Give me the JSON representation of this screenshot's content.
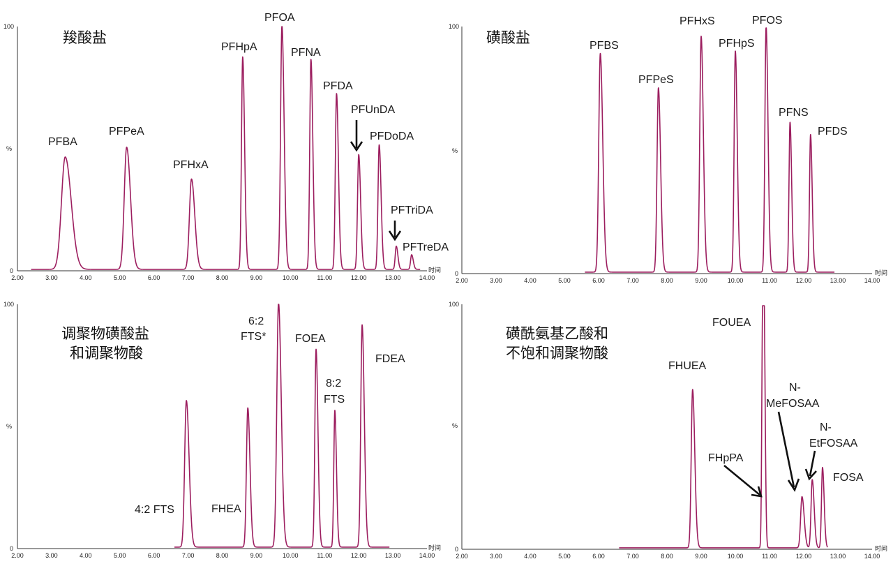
{
  "x_axis_label": "时间",
  "y_axis_label": "%",
  "chart_data": [
    {
      "type": "line",
      "title": "羧酸盐",
      "xlim": [
        2.0,
        14.0
      ],
      "ylim": [
        0,
        100
      ],
      "xticks": [
        "2.00",
        "3.00",
        "4.00",
        "5.00",
        "6.00",
        "7.00",
        "8.00",
        "9.00",
        "10.00",
        "11.00",
        "12.00",
        "13.00",
        "14.00"
      ],
      "yticks": [
        "0",
        "%",
        "100"
      ],
      "peaks": [
        {
          "name": "PFBA",
          "rt": 3.4,
          "height": 46,
          "width": 0.11
        },
        {
          "name": "PFPeA",
          "rt": 5.2,
          "height": 50,
          "width": 0.07
        },
        {
          "name": "PFHxA",
          "rt": 7.1,
          "height": 37,
          "width": 0.06
        },
        {
          "name": "PFHpA",
          "rt": 8.6,
          "height": 87,
          "width": 0.035
        },
        {
          "name": "PFOA",
          "rt": 9.75,
          "height": 100,
          "width": 0.04
        },
        {
          "name": "PFNA",
          "rt": 10.6,
          "height": 86,
          "width": 0.035
        },
        {
          "name": "PFDA",
          "rt": 11.35,
          "height": 72,
          "width": 0.035
        },
        {
          "name": "PFUnDA",
          "rt": 12.0,
          "height": 47,
          "width": 0.035
        },
        {
          "name": "PFDoDA",
          "rt": 12.6,
          "height": 51,
          "width": 0.035
        },
        {
          "name": "PFTriDA",
          "rt": 13.1,
          "height": 9.5,
          "width": 0.03
        },
        {
          "name": "PFTreDA",
          "rt": 13.55,
          "height": 6,
          "width": 0.03
        }
      ]
    },
    {
      "type": "line",
      "title": "磺酸盐",
      "xlim": [
        2.0,
        14.0
      ],
      "ylim": [
        0,
        100
      ],
      "xticks": [
        "2.00",
        "3.00",
        "4.00",
        "5.00",
        "6.00",
        "7.00",
        "8.00",
        "9.00",
        "10.00",
        "11.00",
        "12.00",
        "13.00",
        "14.00"
      ],
      "yticks": [
        "0",
        "%",
        "100"
      ],
      "peaks": [
        {
          "name": "PFBS",
          "rt": 6.05,
          "height": 89,
          "width": 0.045
        },
        {
          "name": "PFPeS",
          "rt": 7.75,
          "height": 75,
          "width": 0.04
        },
        {
          "name": "PFHxS",
          "rt": 9.0,
          "height": 96,
          "width": 0.04
        },
        {
          "name": "PFHpS",
          "rt": 10.0,
          "height": 90,
          "width": 0.035
        },
        {
          "name": "PFOS",
          "rt": 10.9,
          "height": 100,
          "width": 0.035
        },
        {
          "name": "PFNS",
          "rt": 11.6,
          "height": 61,
          "width": 0.03
        },
        {
          "name": "PFDS",
          "rt": 12.2,
          "height": 56,
          "width": 0.03
        }
      ]
    },
    {
      "type": "line",
      "title": "调聚物磺酸盐\n和调聚物酸",
      "xlim": [
        2.0,
        14.0
      ],
      "ylim": [
        0,
        100
      ],
      "xticks": [
        "2.00",
        "3.00",
        "4.00",
        "5.00",
        "6.00",
        "7.00",
        "8.00",
        "9.00",
        "10.00",
        "11.00",
        "12.00",
        "13.00",
        "14.00"
      ],
      "yticks": [
        "0",
        "%",
        "100"
      ],
      "peaks": [
        {
          "name": "4:2 FTS",
          "rt": 6.95,
          "height": 60,
          "width": 0.05
        },
        {
          "name": "FHEA",
          "rt": 8.75,
          "height": 57,
          "width": 0.04
        },
        {
          "name": "6:2 FTS*",
          "rt": 9.65,
          "height": 100,
          "width": 0.05
        },
        {
          "name": "FOEA",
          "rt": 10.75,
          "height": 81,
          "width": 0.035
        },
        {
          "name": "8:2 FTS",
          "rt": 11.3,
          "height": 56,
          "width": 0.03
        },
        {
          "name": "FDEA",
          "rt": 12.1,
          "height": 91,
          "width": 0.04
        }
      ]
    },
    {
      "type": "line",
      "title": "磺酰氨基乙酸和\n不饱和调聚物酸",
      "xlim": [
        2.0,
        14.0
      ],
      "ylim": [
        0,
        100
      ],
      "xticks": [
        "2.00",
        "3.00",
        "4.00",
        "5.00",
        "6.00",
        "7.00",
        "8.00",
        "9.00",
        "10.00",
        "11.00",
        "12.00",
        "13.00",
        "14.00"
      ],
      "yticks": [
        "0",
        "%",
        "100"
      ],
      "peaks": [
        {
          "name": "FHUEA",
          "rt": 8.75,
          "height": 65,
          "width": 0.04
        },
        {
          "name": "FOUEA",
          "rt": 10.8,
          "height": 100,
          "width": 0.025
        },
        {
          "name": "FHpPA",
          "rt": 10.85,
          "height": 53,
          "width": 0.02
        },
        {
          "name": "N-MeFOSAA",
          "rt": 11.95,
          "height": 21,
          "width": 0.04
        },
        {
          "name": "N-EtFOSAA",
          "rt": 12.25,
          "height": 28,
          "width": 0.035
        },
        {
          "name": "FOSA",
          "rt": 12.55,
          "height": 33,
          "width": 0.03
        }
      ]
    }
  ],
  "labels": {
    "p0": [
      "PFBA",
      "PFPeA",
      "PFHxA",
      "PFHpA",
      "PFOA",
      "PFNA",
      "PFDA",
      "PFUnDA",
      "PFDoDA",
      "PFTriDA",
      "PFTreDA"
    ],
    "p1": [
      "PFBS",
      "PFPeS",
      "PFHxS",
      "PFHpS",
      "PFOS",
      "PFNS",
      "PFDS"
    ],
    "p2": [
      "4:2 FTS",
      "FHEA",
      "6:2",
      "FTS*",
      "FOEA",
      "8:2",
      "FTS",
      "FDEA"
    ],
    "p3": [
      "FHUEA",
      "FOUEA",
      "FHpPA",
      "N-",
      "MeFOSAA",
      "N-",
      "EtFOSAA",
      "FOSA"
    ]
  },
  "titles": {
    "p0": [
      "羧酸盐"
    ],
    "p1": [
      "磺酸盐"
    ],
    "p2": [
      "调聚物磺酸盐",
      "和调聚物酸"
    ],
    "p3": [
      "磺酰氨基乙酸和",
      "不饱和调聚物酸"
    ]
  },
  "colors": {
    "trace": "#9c1e5f",
    "axis": "#333333",
    "text": "#1a1a1a"
  }
}
